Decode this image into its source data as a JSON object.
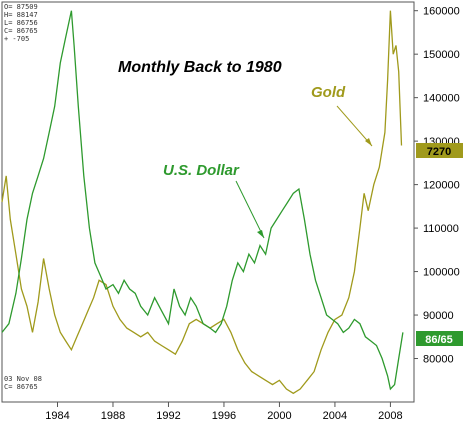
{
  "chart_data": {
    "type": "line",
    "title": "Monthly Back to 1980",
    "x_ticks": [
      "1984",
      "1988",
      "1992",
      "1996",
      "2000",
      "2004",
      "2008"
    ],
    "y_ticks": [
      "160000",
      "150000",
      "140000",
      "130000",
      "120000",
      "110000",
      "100000",
      "90000",
      "80000"
    ],
    "ylim": [
      70000,
      162000
    ],
    "xlim": [
      1980.0,
      2009.7
    ],
    "series": [
      {
        "name": "U.S. Dollar",
        "color": "#2e9a2e",
        "last_value_tag": "86/65",
        "x": [
          1980.0,
          1980.5,
          1981.0,
          1981.4,
          1981.8,
          1982.2,
          1982.6,
          1983.0,
          1983.4,
          1983.8,
          1984.2,
          1984.6,
          1985.0,
          1985.2,
          1985.5,
          1985.9,
          1986.3,
          1986.7,
          1987.1,
          1987.5,
          1988.0,
          1988.4,
          1988.8,
          1989.2,
          1989.6,
          1990.0,
          1990.5,
          1991.0,
          1991.5,
          1992.0,
          1992.4,
          1992.8,
          1993.2,
          1993.6,
          1994.0,
          1994.5,
          1995.0,
          1995.4,
          1995.8,
          1996.2,
          1996.6,
          1997.0,
          1997.4,
          1997.8,
          1998.2,
          1998.6,
          1999.0,
          1999.4,
          1999.8,
          2000.2,
          2000.6,
          2001.0,
          2001.4,
          2001.8,
          2002.2,
          2002.6,
          2003.0,
          2003.4,
          2003.8,
          2004.2,
          2004.6,
          2005.0,
          2005.4,
          2005.8,
          2006.2,
          2006.6,
          2007.0,
          2007.4,
          2007.8,
          2008.0,
          2008.3,
          2008.6,
          2008.9
        ],
        "values": [
          86000,
          88000,
          95000,
          103000,
          112000,
          118000,
          122000,
          126000,
          132000,
          138000,
          148000,
          154000,
          160000,
          152000,
          138000,
          122000,
          110000,
          102000,
          99000,
          96000,
          97000,
          95000,
          98000,
          96000,
          95000,
          92000,
          90000,
          94000,
          91000,
          88000,
          96000,
          92000,
          90000,
          94000,
          92000,
          88000,
          87000,
          86000,
          88000,
          92000,
          98000,
          102000,
          100000,
          104000,
          102000,
          106000,
          104000,
          110000,
          112000,
          114000,
          116000,
          118000,
          119000,
          112000,
          104000,
          98000,
          94000,
          90000,
          89000,
          88000,
          86000,
          87000,
          89000,
          88000,
          85000,
          84000,
          83000,
          80000,
          76000,
          73000,
          74000,
          80000,
          86000
        ]
      },
      {
        "name": "Gold",
        "color": "#a09a1c",
        "last_value_tag": "7270",
        "x": [
          1980.0,
          1980.3,
          1980.6,
          1981.0,
          1981.4,
          1981.8,
          1982.2,
          1982.6,
          1983.0,
          1983.4,
          1983.8,
          1984.2,
          1984.6,
          1985.0,
          1985.4,
          1985.8,
          1986.2,
          1986.6,
          1987.0,
          1987.5,
          1988.0,
          1988.5,
          1989.0,
          1989.5,
          1990.0,
          1990.5,
          1991.0,
          1991.5,
          1992.0,
          1992.5,
          1993.0,
          1993.5,
          1994.0,
          1994.5,
          1995.0,
          1995.5,
          1996.0,
          1996.5,
          1997.0,
          1997.5,
          1998.0,
          1998.5,
          1999.0,
          1999.5,
          2000.0,
          2000.5,
          2001.0,
          2001.5,
          2002.0,
          2002.5,
          2003.0,
          2003.5,
          2004.0,
          2004.5,
          2005.0,
          2005.4,
          2005.8,
          2006.1,
          2006.4,
          2006.8,
          2007.2,
          2007.6,
          2007.8,
          2008.0,
          2008.2,
          2008.4,
          2008.6,
          2008.8
        ],
        "values": [
          116000,
          122000,
          112000,
          104000,
          96000,
          92000,
          86000,
          93000,
          103000,
          96000,
          90000,
          86000,
          84000,
          82000,
          85000,
          88000,
          91000,
          94000,
          98000,
          97000,
          92000,
          89000,
          87000,
          86000,
          85000,
          86000,
          84000,
          83000,
          82000,
          81000,
          84000,
          88000,
          89000,
          88000,
          87000,
          88000,
          89000,
          86000,
          82000,
          79000,
          77000,
          76000,
          75000,
          74000,
          75000,
          73000,
          72000,
          73000,
          75000,
          77000,
          82000,
          86000,
          89000,
          90000,
          94000,
          100000,
          110000,
          118000,
          114000,
          120000,
          124000,
          132000,
          144000,
          160000,
          150000,
          152000,
          146000,
          129000
        ]
      }
    ],
    "annotations": [
      {
        "text": "U.S. Dollar",
        "series": "U.S. Dollar"
      },
      {
        "text": "Gold",
        "series": "Gold"
      }
    ],
    "info_box": [
      "O= 87509",
      "H= 88147",
      "L= 86756",
      "C= 86765",
      "+ -705"
    ],
    "footer_date": "03 Nov 08",
    "footer_value": "C= 86765",
    "grid": false
  }
}
